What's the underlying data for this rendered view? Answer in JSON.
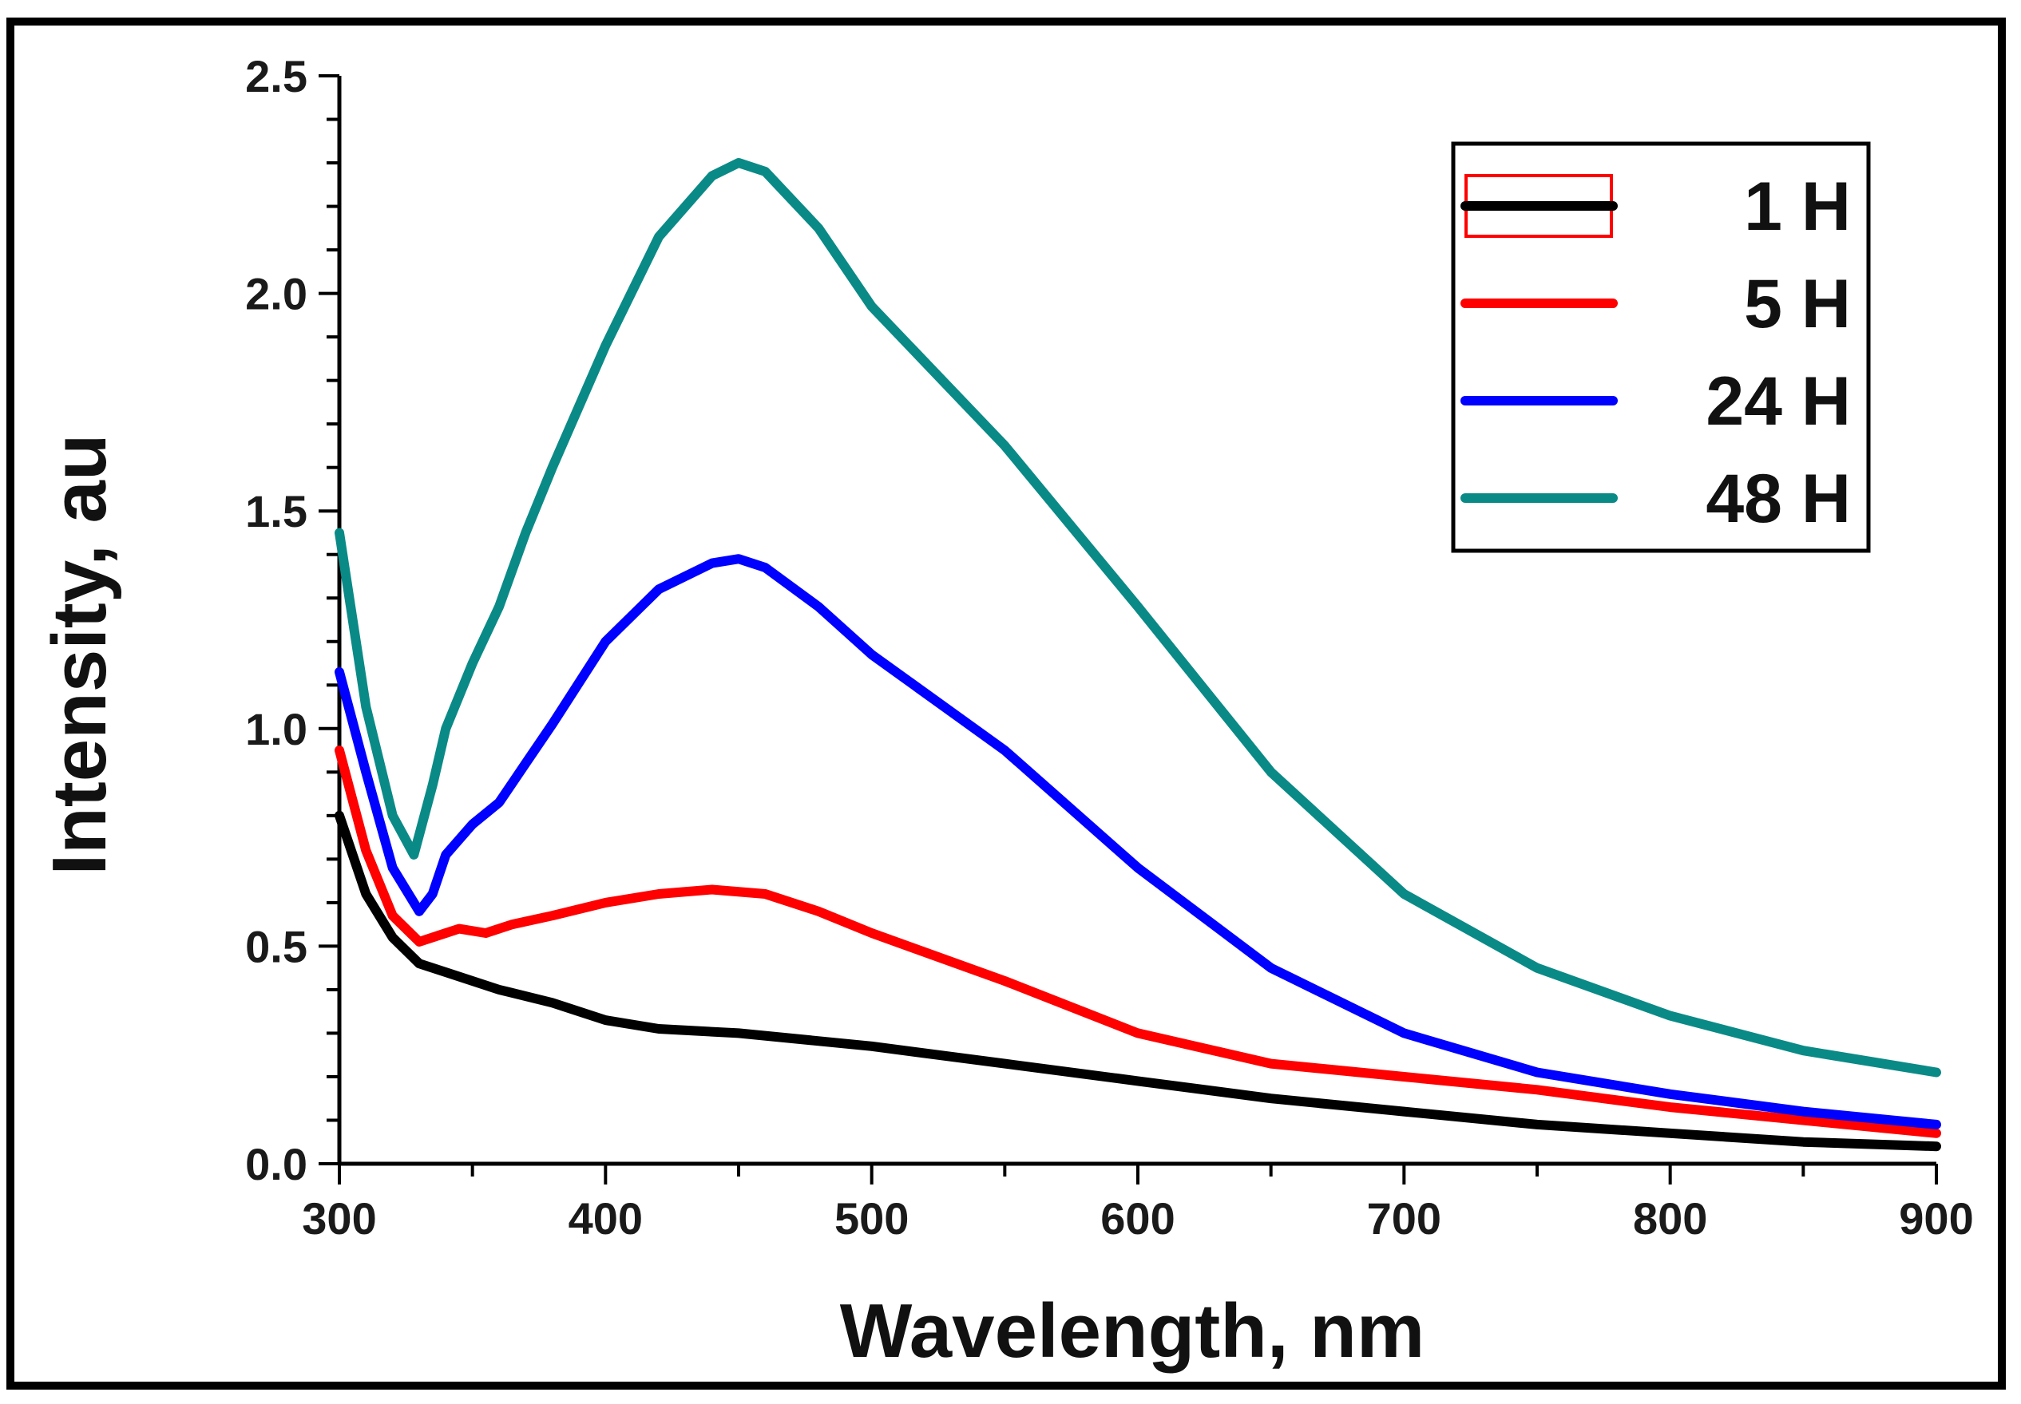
{
  "chart_data": {
    "type": "line",
    "title": "",
    "xlabel": "Wavelength, nm",
    "ylabel": "Intensity, au",
    "xlim": [
      300,
      900
    ],
    "ylim": [
      0.0,
      2.5
    ],
    "xticks": [
      300,
      400,
      500,
      600,
      700,
      800,
      900
    ],
    "xtick_labels": [
      "300",
      "400",
      "500",
      "600",
      "700",
      "800",
      "900"
    ],
    "yticks": [
      0.0,
      0.5,
      1.0,
      1.5,
      2.0,
      2.5
    ],
    "ytick_labels": [
      "0.0",
      "0.5",
      "1.0",
      "1.5",
      "2.0",
      "2.5"
    ],
    "grid": false,
    "legend_position": "top-right",
    "series": [
      {
        "name": "1 H",
        "color": "#000000",
        "x": [
          300,
          310,
          320,
          330,
          340,
          360,
          380,
          400,
          420,
          450,
          500,
          550,
          600,
          650,
          700,
          750,
          800,
          850,
          900
        ],
        "y": [
          0.8,
          0.62,
          0.52,
          0.46,
          0.44,
          0.4,
          0.37,
          0.33,
          0.31,
          0.3,
          0.27,
          0.23,
          0.19,
          0.15,
          0.12,
          0.09,
          0.07,
          0.05,
          0.04
        ]
      },
      {
        "name": "5 H",
        "color": "#ff0000",
        "x": [
          300,
          310,
          320,
          330,
          340,
          345,
          355,
          365,
          380,
          400,
          420,
          440,
          460,
          480,
          500,
          550,
          600,
          650,
          700,
          750,
          800,
          850,
          900
        ],
        "y": [
          0.95,
          0.72,
          0.57,
          0.51,
          0.53,
          0.54,
          0.53,
          0.55,
          0.57,
          0.6,
          0.62,
          0.63,
          0.62,
          0.58,
          0.53,
          0.42,
          0.3,
          0.23,
          0.2,
          0.17,
          0.13,
          0.1,
          0.07
        ]
      },
      {
        "name": "24 H",
        "color": "#0000ff",
        "x": [
          300,
          310,
          320,
          330,
          335,
          340,
          350,
          360,
          370,
          380,
          400,
          420,
          440,
          450,
          460,
          480,
          500,
          550,
          600,
          650,
          700,
          750,
          800,
          850,
          900
        ],
        "y": [
          1.13,
          0.9,
          0.68,
          0.58,
          0.62,
          0.71,
          0.78,
          0.83,
          0.92,
          1.01,
          1.2,
          1.32,
          1.38,
          1.39,
          1.37,
          1.28,
          1.17,
          0.95,
          0.68,
          0.45,
          0.3,
          0.21,
          0.16,
          0.12,
          0.09
        ]
      },
      {
        "name": "48 H",
        "color": "#0a8a86",
        "x": [
          300,
          310,
          320,
          328,
          335,
          340,
          350,
          360,
          370,
          380,
          400,
          420,
          440,
          450,
          460,
          480,
          500,
          550,
          600,
          650,
          700,
          750,
          800,
          850,
          900
        ],
        "y": [
          1.45,
          1.05,
          0.8,
          0.71,
          0.87,
          1.0,
          1.15,
          1.28,
          1.45,
          1.6,
          1.88,
          2.13,
          2.27,
          2.3,
          2.28,
          2.15,
          1.97,
          1.65,
          1.28,
          0.9,
          0.62,
          0.45,
          0.34,
          0.26,
          0.21
        ]
      }
    ]
  }
}
